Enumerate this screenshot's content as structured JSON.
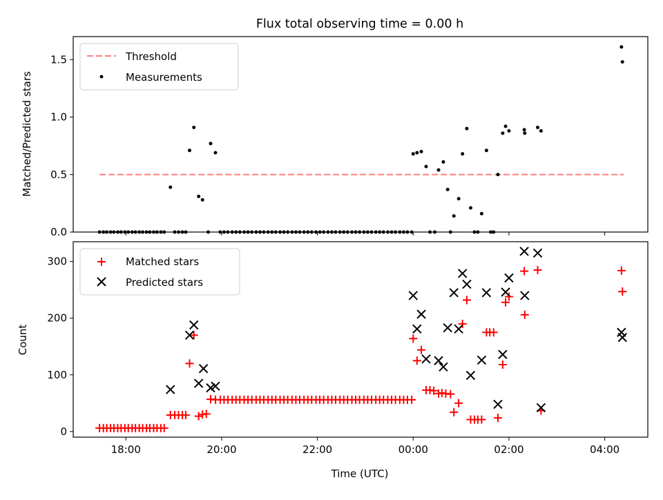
{
  "chart_data": [
    {
      "type": "scatter",
      "title": "Flux total observing time = 0.00 h",
      "ylabel": "Matched/Predicted stars",
      "xlabel": "",
      "ylim": [
        0,
        1.7
      ],
      "yticks": [
        0.0,
        0.5,
        1.0,
        1.5
      ],
      "ytick_labels": [
        "0.0",
        "0.5",
        "1.0",
        "1.5"
      ],
      "legend": {
        "placement": "upper-left",
        "entries": [
          "Threshold",
          "Measurements"
        ]
      },
      "threshold": {
        "name": "Threshold",
        "y": 0.5,
        "x_from": 17.45,
        "x_to": 28.4,
        "color": "#ff7f7f",
        "style": "dashed"
      },
      "series": [
        {
          "name": "Measurements",
          "color": "#000000",
          "marker": "dot",
          "points": [
            [
              17.45,
              0
            ],
            [
              17.53,
              0
            ],
            [
              17.6,
              0
            ],
            [
              17.68,
              0
            ],
            [
              17.75,
              0
            ],
            [
              17.83,
              0
            ],
            [
              17.9,
              0
            ],
            [
              17.98,
              0
            ],
            [
              18.05,
              0
            ],
            [
              18.13,
              0
            ],
            [
              18.2,
              0
            ],
            [
              18.28,
              0
            ],
            [
              18.35,
              0
            ],
            [
              18.43,
              0
            ],
            [
              18.5,
              0
            ],
            [
              18.58,
              0
            ],
            [
              18.65,
              0
            ],
            [
              18.73,
              0
            ],
            [
              18.8,
              0
            ],
            [
              18.93,
              0.39
            ],
            [
              19.02,
              0
            ],
            [
              19.1,
              0
            ],
            [
              19.18,
              0
            ],
            [
              19.25,
              0
            ],
            [
              19.33,
              0.71
            ],
            [
              19.42,
              0.91
            ],
            [
              19.52,
              0.31
            ],
            [
              19.6,
              0.28
            ],
            [
              19.72,
              0
            ],
            [
              19.77,
              0.77
            ],
            [
              19.87,
              0.69
            ],
            [
              19.97,
              0
            ],
            [
              20.05,
              0
            ],
            [
              20.13,
              0
            ],
            [
              20.22,
              0
            ],
            [
              20.3,
              0
            ],
            [
              20.38,
              0
            ],
            [
              20.47,
              0
            ],
            [
              20.55,
              0
            ],
            [
              20.63,
              0
            ],
            [
              20.72,
              0
            ],
            [
              20.8,
              0
            ],
            [
              20.88,
              0
            ],
            [
              20.97,
              0
            ],
            [
              21.05,
              0
            ],
            [
              21.13,
              0
            ],
            [
              21.22,
              0
            ],
            [
              21.3,
              0
            ],
            [
              21.38,
              0
            ],
            [
              21.47,
              0
            ],
            [
              21.55,
              0
            ],
            [
              21.63,
              0
            ],
            [
              21.72,
              0
            ],
            [
              21.8,
              0
            ],
            [
              21.88,
              0
            ],
            [
              21.97,
              0
            ],
            [
              22.05,
              0
            ],
            [
              22.13,
              0
            ],
            [
              22.22,
              0
            ],
            [
              22.3,
              0
            ],
            [
              22.38,
              0
            ],
            [
              22.47,
              0
            ],
            [
              22.55,
              0
            ],
            [
              22.63,
              0
            ],
            [
              22.72,
              0
            ],
            [
              22.8,
              0
            ],
            [
              22.88,
              0
            ],
            [
              22.97,
              0
            ],
            [
              23.05,
              0
            ],
            [
              23.13,
              0
            ],
            [
              23.22,
              0
            ],
            [
              23.3,
              0
            ],
            [
              23.38,
              0
            ],
            [
              23.47,
              0
            ],
            [
              23.55,
              0
            ],
            [
              23.63,
              0
            ],
            [
              23.72,
              0
            ],
            [
              23.8,
              0
            ],
            [
              23.88,
              0
            ],
            [
              23.97,
              0
            ],
            [
              24.0,
              0.68
            ],
            [
              24.08,
              0.69
            ],
            [
              24.17,
              0.7
            ],
            [
              24.27,
              0.57
            ],
            [
              24.35,
              0
            ],
            [
              24.45,
              0
            ],
            [
              24.53,
              0.54
            ],
            [
              24.63,
              0.61
            ],
            [
              24.72,
              0.37
            ],
            [
              24.78,
              0
            ],
            [
              24.85,
              0.14
            ],
            [
              24.95,
              0.29
            ],
            [
              25.03,
              0.68
            ],
            [
              25.12,
              0.9
            ],
            [
              25.2,
              0.21
            ],
            [
              25.28,
              0
            ],
            [
              25.35,
              0
            ],
            [
              25.43,
              0.16
            ],
            [
              25.53,
              0.71
            ],
            [
              25.62,
              0
            ],
            [
              25.68,
              0
            ],
            [
              25.77,
              0.5
            ],
            [
              25.87,
              0.86
            ],
            [
              25.93,
              0.92
            ],
            [
              26.0,
              0.88
            ],
            [
              26.32,
              0.89
            ],
            [
              26.33,
              0.86
            ],
            [
              26.6,
              0.91
            ],
            [
              26.67,
              0.88
            ],
            [
              28.35,
              1.61
            ],
            [
              28.37,
              1.48
            ]
          ]
        }
      ]
    },
    {
      "type": "scatter",
      "title": "",
      "ylabel": "Count",
      "xlabel": "Time (UTC)",
      "ylim": [
        -10,
        335
      ],
      "yticks": [
        0,
        100,
        200,
        300
      ],
      "ytick_labels": [
        "0",
        "100",
        "200",
        "300"
      ],
      "xticks": [
        18,
        20,
        22,
        24,
        26,
        28
      ],
      "xtick_labels": [
        "18:00",
        "20:00",
        "22:00",
        "00:00",
        "02:00",
        "04:00"
      ],
      "xlim": [
        16.9,
        28.9
      ],
      "legend": {
        "placement": "upper-left",
        "entries": [
          "Matched stars",
          "Predicted stars"
        ]
      },
      "series": [
        {
          "name": "Matched stars",
          "color": "#ff0000",
          "marker": "plus",
          "points": [
            [
              17.45,
              6
            ],
            [
              17.53,
              6
            ],
            [
              17.6,
              6
            ],
            [
              17.68,
              6
            ],
            [
              17.75,
              6
            ],
            [
              17.83,
              6
            ],
            [
              17.9,
              6
            ],
            [
              17.98,
              6
            ],
            [
              18.05,
              6
            ],
            [
              18.13,
              6
            ],
            [
              18.2,
              6
            ],
            [
              18.28,
              6
            ],
            [
              18.35,
              6
            ],
            [
              18.43,
              6
            ],
            [
              18.5,
              6
            ],
            [
              18.58,
              6
            ],
            [
              18.65,
              6
            ],
            [
              18.73,
              6
            ],
            [
              18.8,
              6
            ],
            [
              18.93,
              29
            ],
            [
              19.02,
              29
            ],
            [
              19.1,
              29
            ],
            [
              19.18,
              29
            ],
            [
              19.25,
              29
            ],
            [
              19.33,
              120
            ],
            [
              19.42,
              170
            ],
            [
              19.52,
              27
            ],
            [
              19.6,
              30
            ],
            [
              19.68,
              31
            ],
            [
              19.77,
              57
            ],
            [
              19.87,
              56
            ],
            [
              19.97,
              56
            ],
            [
              20.05,
              56
            ],
            [
              20.13,
              56
            ],
            [
              20.22,
              56
            ],
            [
              20.3,
              56
            ],
            [
              20.38,
              56
            ],
            [
              20.47,
              56
            ],
            [
              20.55,
              56
            ],
            [
              20.63,
              56
            ],
            [
              20.72,
              56
            ],
            [
              20.8,
              56
            ],
            [
              20.88,
              56
            ],
            [
              20.97,
              56
            ],
            [
              21.05,
              56
            ],
            [
              21.13,
              56
            ],
            [
              21.22,
              56
            ],
            [
              21.3,
              56
            ],
            [
              21.38,
              56
            ],
            [
              21.47,
              56
            ],
            [
              21.55,
              56
            ],
            [
              21.63,
              56
            ],
            [
              21.72,
              56
            ],
            [
              21.8,
              56
            ],
            [
              21.88,
              56
            ],
            [
              21.97,
              56
            ],
            [
              22.05,
              56
            ],
            [
              22.13,
              56
            ],
            [
              22.22,
              56
            ],
            [
              22.3,
              56
            ],
            [
              22.38,
              56
            ],
            [
              22.47,
              56
            ],
            [
              22.55,
              56
            ],
            [
              22.63,
              56
            ],
            [
              22.72,
              56
            ],
            [
              22.8,
              56
            ],
            [
              22.88,
              56
            ],
            [
              22.97,
              56
            ],
            [
              23.05,
              56
            ],
            [
              23.13,
              56
            ],
            [
              23.22,
              56
            ],
            [
              23.3,
              56
            ],
            [
              23.38,
              56
            ],
            [
              23.47,
              56
            ],
            [
              23.55,
              56
            ],
            [
              23.63,
              56
            ],
            [
              23.72,
              56
            ],
            [
              23.8,
              56
            ],
            [
              23.88,
              56
            ],
            [
              23.97,
              56
            ],
            [
              24.0,
              164
            ],
            [
              24.08,
              125
            ],
            [
              24.17,
              144
            ],
            [
              24.27,
              73
            ],
            [
              24.35,
              73
            ],
            [
              24.43,
              72
            ],
            [
              24.53,
              67
            ],
            [
              24.6,
              68
            ],
            [
              24.68,
              67
            ],
            [
              24.78,
              66
            ],
            [
              24.85,
              34
            ],
            [
              24.95,
              50
            ],
            [
              25.03,
              190
            ],
            [
              25.12,
              232
            ],
            [
              25.2,
              21
            ],
            [
              25.28,
              21
            ],
            [
              25.35,
              21
            ],
            [
              25.43,
              21
            ],
            [
              25.53,
              175
            ],
            [
              25.6,
              175
            ],
            [
              25.68,
              175
            ],
            [
              25.77,
              24
            ],
            [
              25.87,
              118
            ],
            [
              25.93,
              228
            ],
            [
              26.0,
              238
            ],
            [
              26.32,
              283
            ],
            [
              26.33,
              206
            ],
            [
              26.6,
              285
            ],
            [
              26.67,
              37
            ],
            [
              28.35,
              284
            ],
            [
              28.37,
              247
            ]
          ]
        },
        {
          "name": "Predicted stars",
          "color": "#000000",
          "marker": "x",
          "points": [
            [
              18.93,
              74
            ],
            [
              19.33,
              170
            ],
            [
              19.42,
              188
            ],
            [
              19.52,
              85
            ],
            [
              19.62,
              111
            ],
            [
              19.77,
              77
            ],
            [
              19.87,
              80
            ],
            [
              24.0,
              240
            ],
            [
              24.08,
              181
            ],
            [
              24.17,
              207
            ],
            [
              24.27,
              128
            ],
            [
              24.53,
              125
            ],
            [
              24.63,
              114
            ],
            [
              24.72,
              183
            ],
            [
              24.85,
              245
            ],
            [
              24.95,
              181
            ],
            [
              25.03,
              279
            ],
            [
              25.12,
              260
            ],
            [
              25.2,
              99
            ],
            [
              25.43,
              126
            ],
            [
              25.53,
              245
            ],
            [
              25.77,
              48
            ],
            [
              25.87,
              136
            ],
            [
              25.93,
              246
            ],
            [
              26.0,
              271
            ],
            [
              26.32,
              318
            ],
            [
              26.33,
              240
            ],
            [
              26.6,
              315
            ],
            [
              26.67,
              42
            ],
            [
              28.35,
              175
            ],
            [
              28.37,
              166
            ]
          ]
        }
      ]
    }
  ]
}
